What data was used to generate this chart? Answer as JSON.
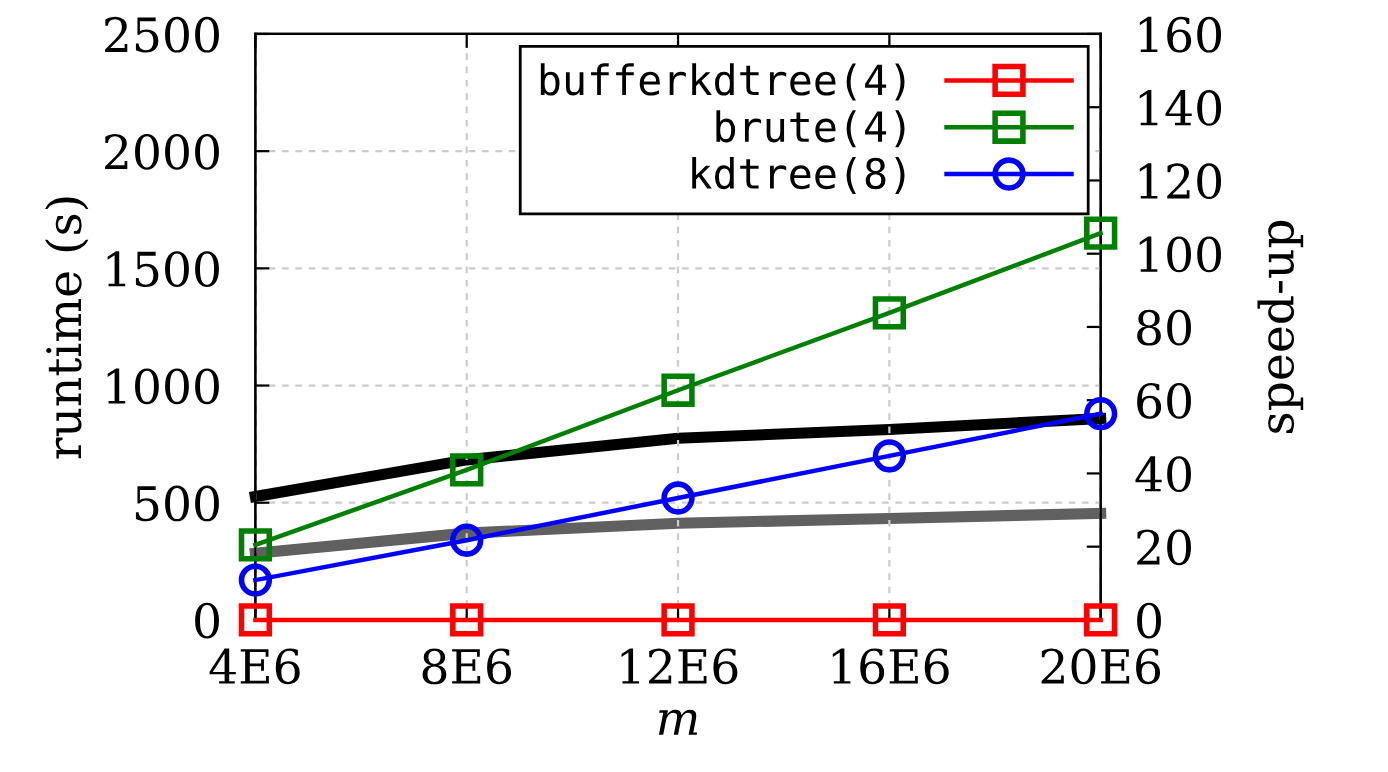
{
  "chart_data": {
    "type": "line",
    "xlabel": "m",
    "ylabel": "runtime (s)",
    "y2label": "speed-up",
    "x": [
      4000000,
      8000000,
      12000000,
      16000000,
      20000000
    ],
    "xlim": [
      4000000,
      20000000
    ],
    "xticks": [
      {
        "value": 4000000,
        "label": "4E6"
      },
      {
        "value": 8000000,
        "label": "8E6"
      },
      {
        "value": 12000000,
        "label": "12E6"
      },
      {
        "value": 16000000,
        "label": "16E6"
      },
      {
        "value": 20000000,
        "label": "20E6"
      }
    ],
    "ylim": [
      0,
      2500
    ],
    "yticks": [
      0,
      500,
      1000,
      1500,
      2000,
      2500
    ],
    "y2lim": [
      0,
      160
    ],
    "y2ticks": [
      0,
      20,
      40,
      60,
      80,
      100,
      120,
      140,
      160
    ],
    "grid": true,
    "legend": "top right",
    "line_style": "solid",
    "series": [
      {
        "name": "bufferkdtree(4)",
        "color": "#ff0000",
        "marker": "square",
        "values": [
          0,
          0,
          0,
          0,
          0
        ]
      },
      {
        "name": "brute(4)",
        "color": "#008000",
        "marker": "square",
        "values": [
          320,
          640,
          980,
          1310,
          1650
        ]
      },
      {
        "name": "kdtree(8)",
        "color": "#0000ff",
        "marker": "circle",
        "values": [
          170,
          340,
          520,
          700,
          880
        ]
      },
      {
        "color": "#000000",
        "axis": "y2",
        "marker": "none",
        "values": [
          33.7,
          43.7,
          49.6,
          52,
          55
        ]
      },
      {
        "color": "#606060",
        "axis": "y2",
        "marker": "none",
        "values": [
          18.2,
          23.7,
          26.4,
          27.7,
          29.1
        ]
      }
    ]
  }
}
